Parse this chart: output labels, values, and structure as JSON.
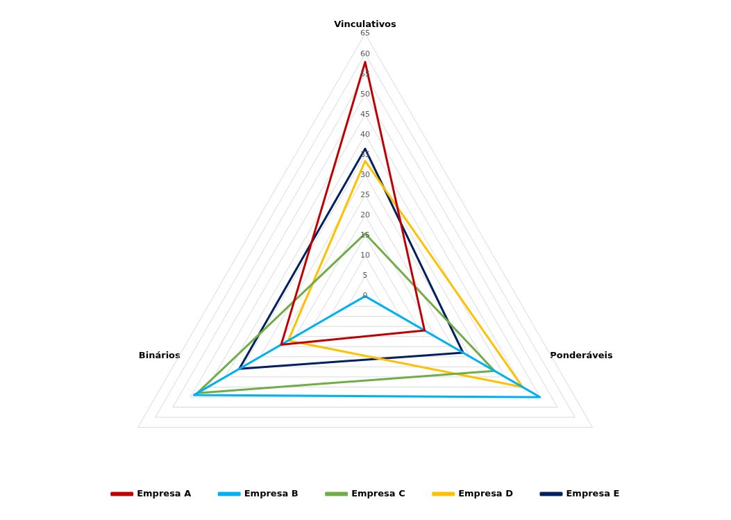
{
  "chart_data": {
    "type": "radar",
    "categories": [
      "Vinculativos",
      "Ponderáveis",
      "Binários"
    ],
    "ylim": [
      0,
      65
    ],
    "yticks": [
      0,
      5,
      10,
      15,
      20,
      25,
      30,
      35,
      40,
      45,
      50,
      55,
      60,
      65
    ],
    "grid": true,
    "legend": "bottom",
    "marker": "none",
    "series": [
      {
        "name": "Empresa A",
        "color": "#c00000",
        "values": [
          58,
          17,
          24
        ]
      },
      {
        "name": "Empresa B",
        "color": "#00b0f0",
        "values": [
          0,
          50,
          49
        ]
      },
      {
        "name": "Empresa C",
        "color": "#70ad47",
        "values": [
          15.5,
          37,
          48
        ]
      },
      {
        "name": "Empresa D",
        "color": "#ffc000",
        "values": [
          33.5,
          45,
          22
        ]
      },
      {
        "name": "Empresa E",
        "color": "#002060",
        "values": [
          36.5,
          28,
          36
        ]
      }
    ]
  }
}
